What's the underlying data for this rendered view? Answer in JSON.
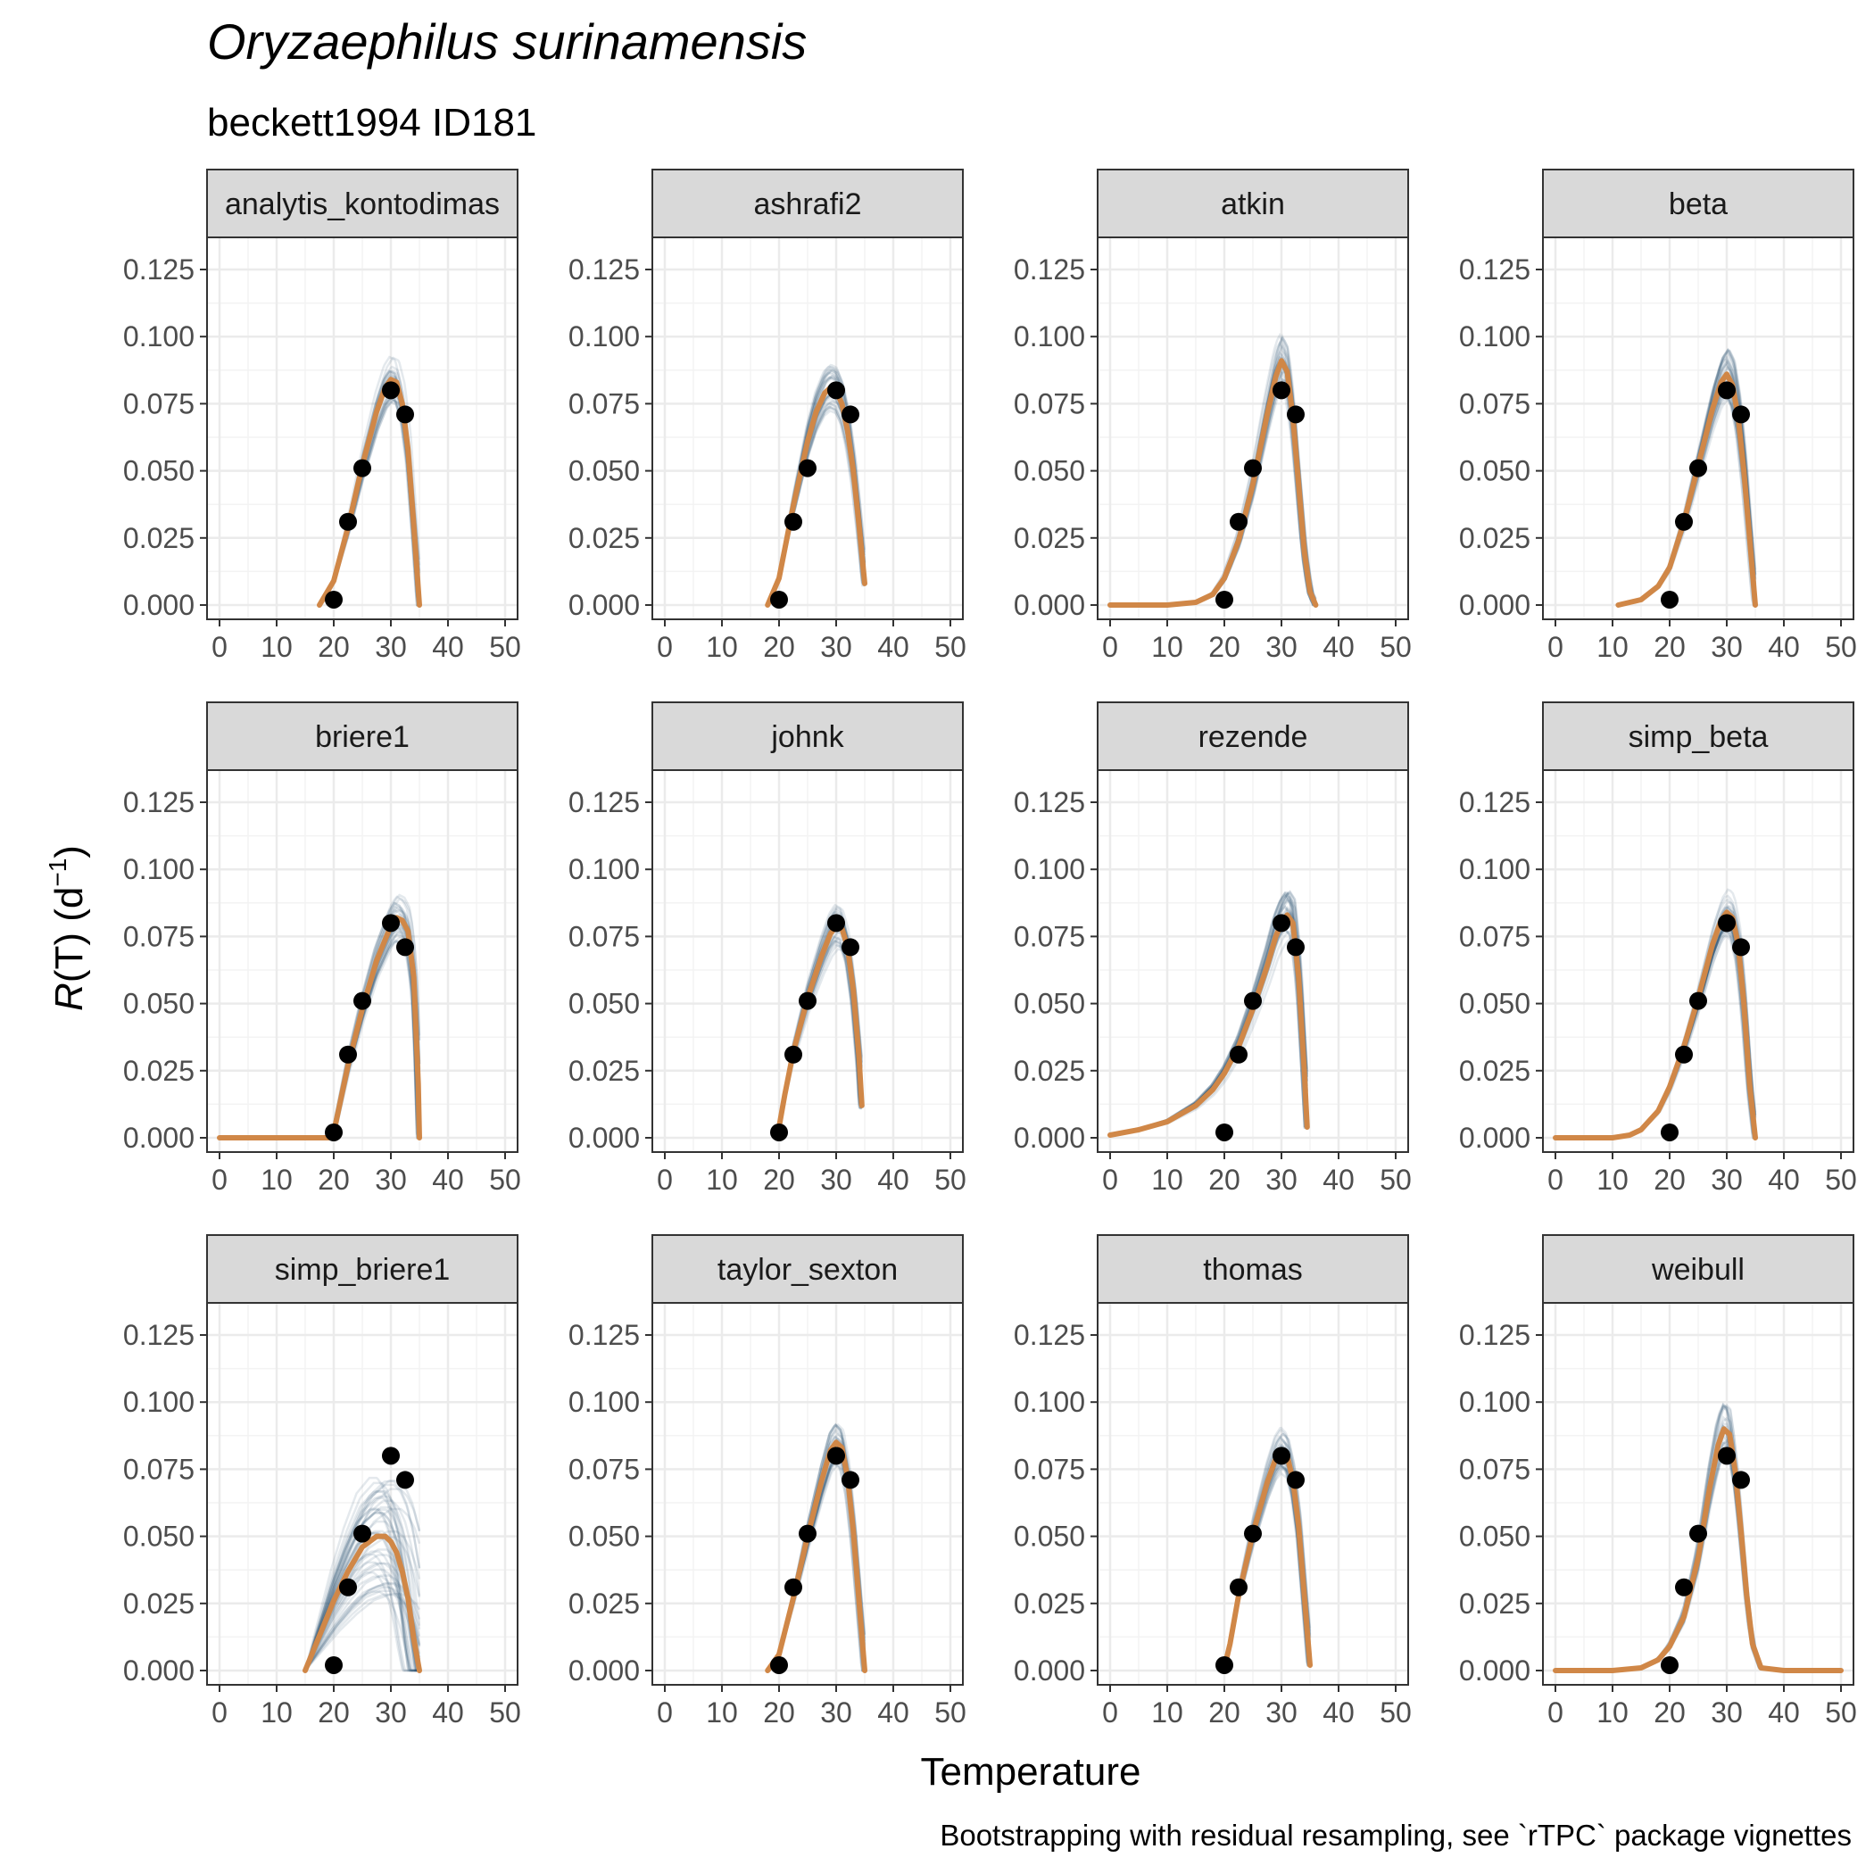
{
  "chart_data": {
    "type": "line",
    "title": "Oryzaephilus surinamensis",
    "subtitle": "beckett1994 ID181",
    "xlabel": "Temperature",
    "ylabel_symbol": "R",
    "ylabel_rest": "(T) (d",
    "ylabel_exponent": "−1",
    "ylabel_close": ")",
    "caption": "Bootstrapping with residual resampling, see `rTPC` package vignettes",
    "xlim": [
      0,
      50
    ],
    "ylim": [
      0,
      0.125
    ],
    "x_ticks": [
      0,
      10,
      20,
      30,
      40,
      50
    ],
    "y_ticks": [
      0,
      0.025,
      0.05,
      0.075,
      0.1,
      0.125
    ],
    "y_tick_labels": [
      "0.000",
      "0.025",
      "0.050",
      "0.075",
      "0.100",
      "0.125"
    ],
    "grid": true,
    "colors": {
      "fit": "#d08747",
      "bootstrap": "#1f4e6b",
      "points": "#000000",
      "strip_fill": "#d9d9d9",
      "grid": "#ebebeb"
    },
    "points": {
      "x": [
        20,
        22.5,
        25,
        30,
        32.5
      ],
      "y": [
        0.002,
        0.031,
        0.051,
        0.08,
        0.071
      ]
    },
    "panels": [
      {
        "name": "analytis_kontodimas",
        "fit": {
          "x": [
            17.5,
            20,
            22.5,
            25,
            27.5,
            29,
            30,
            31,
            32,
            33,
            34,
            35
          ],
          "y": [
            0,
            0.009,
            0.029,
            0.052,
            0.072,
            0.081,
            0.084,
            0.083,
            0.075,
            0.058,
            0.03,
            0
          ]
        }
      },
      {
        "name": "ashrafi2",
        "fit": {
          "x": [
            18,
            20,
            22.5,
            25,
            26.5,
            28,
            29,
            30,
            31,
            32,
            33,
            34,
            35
          ],
          "y": [
            0,
            0.01,
            0.037,
            0.061,
            0.072,
            0.079,
            0.081,
            0.08,
            0.075,
            0.065,
            0.05,
            0.03,
            0.008
          ]
        }
      },
      {
        "name": "atkin",
        "fit": {
          "x": [
            0,
            5,
            10,
            15,
            18,
            20,
            22.5,
            25,
            27.5,
            29,
            30,
            31,
            32,
            33,
            34,
            35,
            36
          ],
          "y": [
            0,
            0,
            0,
            0.001,
            0.004,
            0.01,
            0.024,
            0.045,
            0.071,
            0.085,
            0.091,
            0.087,
            0.07,
            0.045,
            0.02,
            0.005,
            0
          ]
        }
      },
      {
        "name": "beta",
        "fit": {
          "x": [
            11,
            15,
            18,
            20,
            22.5,
            25,
            27.5,
            29,
            30,
            31,
            32,
            33,
            34,
            35
          ],
          "y": [
            0,
            0.002,
            0.007,
            0.014,
            0.031,
            0.052,
            0.073,
            0.083,
            0.086,
            0.082,
            0.07,
            0.05,
            0.025,
            0
          ]
        }
      },
      {
        "name": "briere1",
        "fit": {
          "x": [
            0,
            5,
            10,
            15,
            19.5,
            20,
            22.5,
            25,
            27.5,
            30,
            31,
            32,
            33,
            34,
            34.8,
            35
          ],
          "y": [
            0,
            0,
            0,
            0,
            0,
            0.002,
            0.027,
            0.048,
            0.066,
            0.079,
            0.082,
            0.081,
            0.077,
            0.06,
            0.02,
            0
          ]
        }
      },
      {
        "name": "johnk",
        "fit": {
          "x": [
            20,
            21,
            22.5,
            25,
            27.5,
            29,
            30,
            31,
            32,
            33,
            34,
            34.5
          ],
          "y": [
            0.004,
            0.016,
            0.032,
            0.052,
            0.068,
            0.076,
            0.079,
            0.078,
            0.071,
            0.055,
            0.03,
            0.012
          ]
        }
      },
      {
        "name": "rezende",
        "fit": {
          "x": [
            0,
            5,
            10,
            15,
            18,
            20,
            22.5,
            25,
            27.5,
            29,
            30,
            31,
            32,
            33,
            34,
            34.5
          ],
          "y": [
            0.001,
            0.003,
            0.006,
            0.012,
            0.018,
            0.024,
            0.034,
            0.048,
            0.064,
            0.075,
            0.08,
            0.083,
            0.08,
            0.06,
            0.025,
            0.004
          ]
        }
      },
      {
        "name": "simp_beta",
        "fit": {
          "x": [
            0,
            5,
            10,
            13,
            15,
            18,
            20,
            22.5,
            25,
            27.5,
            29,
            30,
            31,
            32,
            33,
            34,
            35
          ],
          "y": [
            0,
            0,
            0,
            0.001,
            0.003,
            0.01,
            0.019,
            0.034,
            0.052,
            0.072,
            0.081,
            0.084,
            0.082,
            0.072,
            0.05,
            0.02,
            0
          ]
        }
      },
      {
        "name": "simp_briere1",
        "fit": {
          "x": [
            15,
            17.5,
            20,
            22.5,
            25,
            27.5,
            29,
            30,
            31,
            32,
            33,
            34,
            35
          ],
          "y": [
            0,
            0.013,
            0.026,
            0.037,
            0.046,
            0.05,
            0.05,
            0.048,
            0.044,
            0.037,
            0.027,
            0.012,
            0
          ]
        }
      },
      {
        "name": "taylor_sexton",
        "fit": {
          "x": [
            18,
            20,
            22.5,
            25,
            27.5,
            29,
            30,
            31,
            32,
            33,
            34,
            35
          ],
          "y": [
            0,
            0.006,
            0.027,
            0.05,
            0.071,
            0.082,
            0.085,
            0.083,
            0.072,
            0.052,
            0.026,
            0
          ]
        }
      },
      {
        "name": "thomas",
        "fit": {
          "x": [
            20,
            21,
            22.5,
            25,
            27.5,
            29,
            30,
            31,
            32,
            33,
            34,
            35
          ],
          "y": [
            0.001,
            0.01,
            0.028,
            0.051,
            0.07,
            0.079,
            0.082,
            0.08,
            0.071,
            0.054,
            0.028,
            0.002
          ]
        }
      },
      {
        "name": "weibull",
        "fit": {
          "x": [
            0,
            5,
            10,
            15,
            18,
            20,
            22.5,
            25,
            27,
            28.5,
            29.5,
            30.5,
            31.5,
            32.5,
            33.5,
            34.5,
            36,
            40,
            45,
            50
          ],
          "y": [
            0,
            0,
            0,
            0.001,
            0.004,
            0.009,
            0.02,
            0.042,
            0.068,
            0.084,
            0.09,
            0.088,
            0.074,
            0.052,
            0.028,
            0.01,
            0.001,
            0,
            0,
            0
          ]
        }
      }
    ]
  }
}
